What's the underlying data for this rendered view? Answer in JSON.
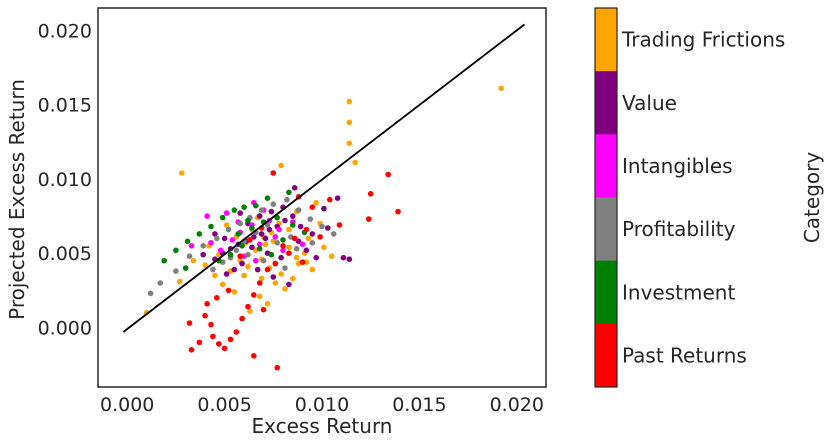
{
  "chart_data": {
    "type": "scatter",
    "title": "",
    "xlabel": "Excess Return",
    "ylabel": "Projected Excess Return",
    "xlim": [
      -0.0015,
      0.0215
    ],
    "ylim": [
      -0.004,
      0.0215
    ],
    "xticks": [
      "0.000",
      "0.005",
      "0.010",
      "0.015",
      "0.020"
    ],
    "yticks": [
      "0.000",
      "0.005",
      "0.010",
      "0.015",
      "0.020"
    ],
    "xtick_values": [
      0.0,
      0.005,
      0.01,
      0.015,
      0.02
    ],
    "ytick_values": [
      0.0,
      0.005,
      0.01,
      0.015,
      0.02
    ],
    "grid": false,
    "reference_line": {
      "x": [
        -0.0002,
        0.0204
      ],
      "y": [
        -0.0003,
        0.0204
      ],
      "color": "#000000"
    },
    "colorbar": {
      "label": "Category",
      "categories": [
        {
          "name": "Trading Frictions",
          "color": "#FFA500"
        },
        {
          "name": "Value",
          "color": "#800080"
        },
        {
          "name": "Intangibles",
          "color": "#FF00FF"
        },
        {
          "name": "Profitability",
          "color": "#808080"
        },
        {
          "name": "Investment",
          "color": "#008000"
        },
        {
          "name": "Past Returns",
          "color": "#FF0000"
        }
      ]
    },
    "series": [
      {
        "category": "Trading Frictions",
        "color": "#FFA500",
        "points": [
          [
            0.0192,
            0.0161
          ],
          [
            0.0114,
            0.0152
          ],
          [
            0.0114,
            0.0138
          ],
          [
            0.0114,
            0.0124
          ],
          [
            0.0117,
            0.0111
          ],
          [
            0.0028,
            0.0104
          ],
          [
            0.0079,
            0.0109
          ],
          [
            0.0097,
            0.0084
          ],
          [
            0.0087,
            0.0078
          ],
          [
            0.0064,
            0.0066
          ],
          [
            0.007,
            0.0061
          ],
          [
            0.0075,
            0.0058
          ],
          [
            0.0083,
            0.0054
          ],
          [
            0.0091,
            0.005
          ],
          [
            0.0058,
            0.0045
          ],
          [
            0.0062,
            0.0041
          ],
          [
            0.0069,
            0.0046
          ],
          [
            0.0073,
            0.004
          ],
          [
            0.0079,
            0.0036
          ],
          [
            0.0085,
            0.0033
          ],
          [
            0.0053,
            0.0038
          ],
          [
            0.0047,
            0.0049
          ],
          [
            0.0042,
            0.0055
          ],
          [
            0.0088,
            0.0043
          ],
          [
            0.0095,
            0.0039
          ],
          [
            0.0066,
            0.0052
          ],
          [
            0.0071,
            0.0056
          ],
          [
            0.006,
            0.0035
          ],
          [
            0.0076,
            0.003
          ],
          [
            0.0081,
            0.0026
          ],
          [
            0.0068,
            0.0021
          ],
          [
            0.0072,
            0.0016
          ],
          [
            0.0063,
            0.0011
          ],
          [
            0.0055,
            0.0024
          ],
          [
            0.0049,
            0.0029
          ],
          [
            0.001,
            0.001
          ],
          [
            0.0027,
            0.0031
          ],
          [
            0.0034,
            0.0045
          ],
          [
            0.0093,
            0.006
          ],
          [
            0.0101,
            0.0054
          ],
          [
            0.0105,
            0.0048
          ],
          [
            0.0083,
            0.0066
          ],
          [
            0.0078,
            0.007
          ],
          [
            0.0056,
            0.0061
          ],
          [
            0.0051,
            0.0069
          ],
          [
            0.0067,
            0.0074
          ],
          [
            0.0074,
            0.0064
          ],
          [
            0.0061,
            0.0057
          ],
          [
            0.0087,
            0.0047
          ],
          [
            0.0092,
            0.0044
          ],
          [
            0.004,
            0.0042
          ],
          [
            0.0045,
            0.0035
          ],
          [
            0.0099,
            0.007
          ],
          [
            0.0076,
            0.0043
          ],
          [
            0.0069,
            0.0033
          ]
        ]
      },
      {
        "category": "Value",
        "color": "#800080",
        "points": [
          [
            0.0086,
            0.0094
          ],
          [
            0.0108,
            0.0087
          ],
          [
            0.0101,
            0.008
          ],
          [
            0.0085,
            0.0075
          ],
          [
            0.0081,
            0.0072
          ],
          [
            0.0077,
            0.0068
          ],
          [
            0.0073,
            0.0066
          ],
          [
            0.0069,
            0.0063
          ],
          [
            0.0065,
            0.0061
          ],
          [
            0.0061,
            0.0058
          ],
          [
            0.0057,
            0.0056
          ],
          [
            0.0053,
            0.0053
          ],
          [
            0.0049,
            0.005
          ],
          [
            0.0045,
            0.0046
          ],
          [
            0.0064,
            0.0054
          ],
          [
            0.0072,
            0.005
          ],
          [
            0.0079,
            0.0047
          ],
          [
            0.0088,
            0.0058
          ],
          [
            0.0092,
            0.0052
          ],
          [
            0.0097,
            0.0047
          ],
          [
            0.0114,
            0.0046
          ],
          [
            0.0111,
            0.0047
          ],
          [
            0.0103,
            0.0067
          ],
          [
            0.0059,
            0.0043
          ],
          [
            0.0055,
            0.0039
          ],
          [
            0.0051,
            0.0036
          ],
          [
            0.0067,
            0.0039
          ],
          [
            0.0075,
            0.0034
          ],
          [
            0.0083,
            0.0029
          ],
          [
            0.0039,
            0.0049
          ],
          [
            0.0062,
            0.007
          ],
          [
            0.0068,
            0.0075
          ],
          [
            0.0074,
            0.0078
          ],
          [
            0.008,
            0.0081
          ],
          [
            0.005,
            0.006
          ],
          [
            0.0045,
            0.0063
          ],
          [
            0.0058,
            0.0077
          ],
          [
            0.0071,
            0.006
          ],
          [
            0.0089,
            0.0068
          ],
          [
            0.0095,
            0.0063
          ]
        ]
      },
      {
        "category": "Intangibles",
        "color": "#FF00FF",
        "points": [
          [
            0.0041,
            0.0075
          ],
          [
            0.0051,
            0.0077
          ],
          [
            0.0065,
            0.0084
          ],
          [
            0.007,
            0.0079
          ],
          [
            0.0064,
            0.0069
          ],
          [
            0.0058,
            0.0064
          ],
          [
            0.0054,
            0.0059
          ],
          [
            0.0068,
            0.0056
          ],
          [
            0.0076,
            0.0061
          ],
          [
            0.008,
            0.0052
          ],
          [
            0.0085,
            0.0071
          ],
          [
            0.0048,
            0.0052
          ],
          [
            0.0043,
            0.0057
          ],
          [
            0.0033,
            0.0055
          ],
          [
            0.006,
            0.0048
          ],
          [
            0.0073,
            0.0072
          ],
          [
            0.009,
            0.0056
          ],
          [
            0.0066,
            0.0045
          ],
          [
            0.0057,
            0.0071
          ],
          [
            0.0078,
            0.0066
          ]
        ]
      },
      {
        "category": "Profitability",
        "color": "#808080",
        "points": [
          [
            0.0012,
            0.0023
          ],
          [
            0.0017,
            0.003
          ],
          [
            0.0025,
            0.0038
          ],
          [
            0.0032,
            0.0048
          ],
          [
            0.0039,
            0.0055
          ],
          [
            0.0046,
            0.006
          ],
          [
            0.0052,
            0.0066
          ],
          [
            0.0058,
            0.007
          ],
          [
            0.0063,
            0.0074
          ],
          [
            0.0069,
            0.0079
          ],
          [
            0.0075,
            0.0083
          ],
          [
            0.0082,
            0.0086
          ],
          [
            0.0088,
            0.0079
          ],
          [
            0.0094,
            0.0073
          ],
          [
            0.01,
            0.0068
          ],
          [
            0.0106,
            0.0063
          ],
          [
            0.0056,
            0.0052
          ],
          [
            0.0062,
            0.0049
          ],
          [
            0.007,
            0.0045
          ],
          [
            0.0077,
            0.0057
          ],
          [
            0.0084,
            0.0061
          ],
          [
            0.0049,
            0.0044
          ],
          [
            0.0044,
            0.0039
          ],
          [
            0.0066,
            0.0064
          ],
          [
            0.0072,
            0.0069
          ],
          [
            0.006,
            0.0058
          ],
          [
            0.0053,
            0.0047
          ],
          [
            0.0081,
            0.004
          ],
          [
            0.0087,
            0.0053
          ],
          [
            0.0095,
            0.0057
          ]
        ]
      },
      {
        "category": "Investment",
        "color": "#008000",
        "points": [
          [
            0.0083,
            0.0091
          ],
          [
            0.0072,
            0.0087
          ],
          [
            0.0066,
            0.0082
          ],
          [
            0.006,
            0.0081
          ],
          [
            0.0055,
            0.0079
          ],
          [
            0.0049,
            0.0074
          ],
          [
            0.0043,
            0.0068
          ],
          [
            0.0037,
            0.0063
          ],
          [
            0.0031,
            0.0058
          ],
          [
            0.0025,
            0.0052
          ],
          [
            0.0019,
            0.0045
          ],
          [
            0.003,
            0.004
          ],
          [
            0.0064,
            0.0067
          ],
          [
            0.007,
            0.0071
          ],
          [
            0.0077,
            0.0074
          ],
          [
            0.0085,
            0.0069
          ],
          [
            0.0059,
            0.0055
          ],
          [
            0.0053,
            0.0049
          ],
          [
            0.008,
            0.0059
          ],
          [
            0.0091,
            0.0064
          ],
          [
            0.0068,
            0.0053
          ],
          [
            0.0074,
            0.0049
          ],
          [
            0.0047,
            0.0045
          ],
          [
            0.0057,
            0.0063
          ],
          [
            0.0062,
            0.0072
          ]
        ]
      },
      {
        "category": "Past Returns",
        "color": "#FF0000",
        "points": [
          [
            0.0134,
            0.0103
          ],
          [
            0.0139,
            0.0078
          ],
          [
            0.0125,
            0.009
          ],
          [
            0.0124,
            0.0073
          ],
          [
            0.0104,
            0.0086
          ],
          [
            0.0095,
            0.0081
          ],
          [
            0.0092,
            0.0066
          ],
          [
            0.0088,
            0.0088
          ],
          [
            0.0086,
            0.006
          ],
          [
            0.0075,
            0.0104
          ],
          [
            0.008,
            0.0055
          ],
          [
            0.0076,
            0.0043
          ],
          [
            0.0072,
            0.0039
          ],
          [
            0.0068,
            0.003
          ],
          [
            0.0065,
            0.0022
          ],
          [
            0.0062,
            0.0014
          ],
          [
            0.0059,
            0.0006
          ],
          [
            0.0056,
            -0.0003
          ],
          [
            0.0053,
            -0.0008
          ],
          [
            0.005,
            -0.0014
          ],
          [
            0.0047,
            -0.0011
          ],
          [
            0.0044,
            -0.0006
          ],
          [
            0.0043,
            0.0002
          ],
          [
            0.004,
            0.0008
          ],
          [
            0.0037,
            -0.001
          ],
          [
            0.0033,
            -0.0015
          ],
          [
            0.0032,
            0.0003
          ],
          [
            0.0077,
            -0.0027
          ],
          [
            0.0065,
            -0.0019
          ],
          [
            0.007,
            0.0012
          ],
          [
            0.0052,
            0.0025
          ],
          [
            0.0046,
            0.002
          ],
          [
            0.0041,
            0.0016
          ],
          [
            0.0058,
            0.0048
          ],
          [
            0.0063,
            0.0059
          ],
          [
            0.0069,
            0.0067
          ],
          [
            0.0083,
            0.005
          ],
          [
            0.009,
            0.0044
          ],
          [
            0.0099,
            0.0061
          ],
          [
            0.0109,
            0.0069
          ]
        ]
      }
    ]
  }
}
